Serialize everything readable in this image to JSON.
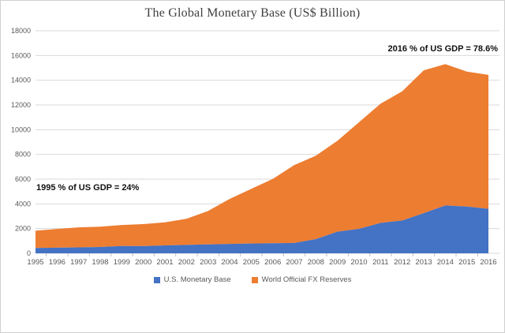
{
  "title": "The Global Monetary Base (US$ Billion)",
  "annotations": {
    "left": "1995 % of US GDP = 24%",
    "right": "2016 % of US GDP = 78.6%"
  },
  "legend": {
    "items": [
      {
        "label": "U.S. Monetary Base",
        "color": "#4472C4"
      },
      {
        "label": "World Official FX Reserves",
        "color": "#ED7D31"
      }
    ],
    "position": "bottom"
  },
  "colors": {
    "series_blue": "#4472C4",
    "series_orange": "#ED7D31",
    "gridline": "#D9D9D9",
    "tick": "#BFBFBF",
    "axis_text": "#595959",
    "title_text": "#3F3F3F",
    "annotation_text": "#111111",
    "frame_border": "#D0D0D0",
    "background": "#FFFFFF"
  },
  "chart_data": {
    "type": "area",
    "stacked": true,
    "title": "The Global Monetary Base (US$ Billion)",
    "x": [
      1995,
      1996,
      1997,
      1998,
      1999,
      2000,
      2001,
      2002,
      2003,
      2004,
      2005,
      2006,
      2007,
      2008,
      2009,
      2010,
      2011,
      2012,
      2013,
      2014,
      2015,
      2016
    ],
    "series": [
      {
        "name": "U.S. Monetary Base",
        "color": "#4472C4",
        "values": [
          434,
          452,
          479,
          513,
          593,
          584,
          636,
          681,
          721,
          760,
          787,
          812,
          837,
          1150,
          1750,
          1980,
          2460,
          2650,
          3250,
          3870,
          3780,
          3600
        ]
      },
      {
        "name": "World Official FX Reserves",
        "color": "#ED7D31",
        "values": [
          1390,
          1520,
          1620,
          1640,
          1700,
          1780,
          1870,
          2110,
          2700,
          3640,
          4420,
          5200,
          6300,
          6750,
          7350,
          8620,
          9640,
          10450,
          11550,
          11430,
          10920,
          10830
        ]
      }
    ],
    "stacked_totals": [
      1824,
      1972,
      2099,
      2153,
      2293,
      2364,
      2506,
      2791,
      3421,
      4400,
      5207,
      6012,
      7137,
      7900,
      9100,
      10600,
      12100,
      13100,
      14800,
      15300,
      14700,
      14430
    ],
    "xlabel": "",
    "ylabel": "",
    "ylim": [
      0,
      18000
    ],
    "ytick_interval": 2000,
    "ytick_labels": [
      "0",
      "2000",
      "4000",
      "6000",
      "8000",
      "10000",
      "12000",
      "14000",
      "16000",
      "18000"
    ],
    "grid": true,
    "legend_position": "bottom",
    "annotations": [
      {
        "text": "1995 % of US GDP = 24%",
        "anchor_year": 1995
      },
      {
        "text": "2016 % of US GDP = 78.6%",
        "anchor_year": 2016
      }
    ]
  }
}
